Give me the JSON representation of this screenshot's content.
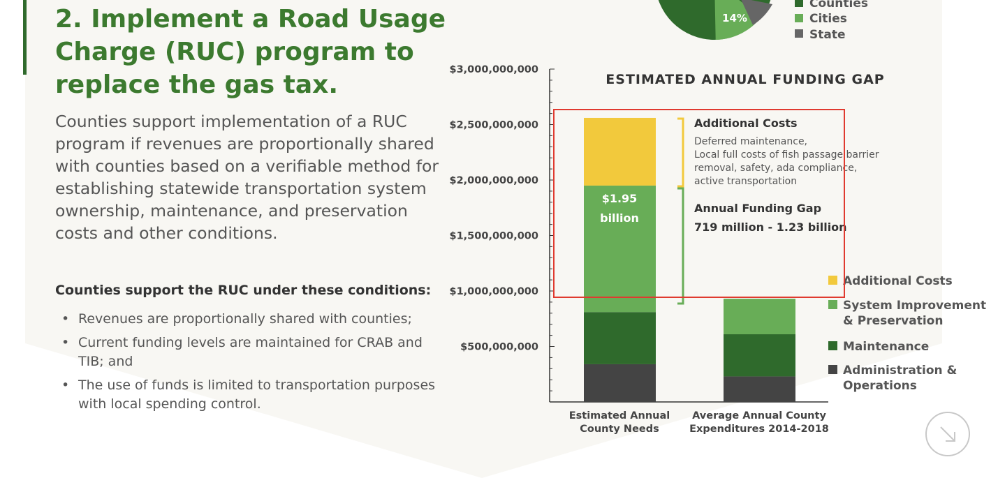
{
  "heading": "2. Implement a Road Usage Charge (RUC) program to replace the gas tax.",
  "intro": "Counties support implementation of a RUC program if revenues are proportionally shared with counties based on a verifiable method for establishing statewide transportation system ownership, maintenance, and preservation costs and other conditions.",
  "conditions_heading": "Counties support the RUC under these conditions:",
  "conditions": [
    "Revenues are proportionally shared with counties;",
    "Current funding levels are maintained for CRAB and TIB; and",
    "The use of funds is limited to transportation purposes with local spending control."
  ],
  "bullet": "•",
  "colors": {
    "heading": "#3c7a2f",
    "panel": "#f8f7f3",
    "yellow": "#f2c93c",
    "light_green": "#68ad57",
    "dark_green": "#2f6a2c",
    "charcoal": "#444444",
    "gray": "#666666",
    "highlight": "#e03a2f"
  },
  "pie_legend": [
    "Counties",
    "Cities",
    "State"
  ],
  "pie_cities_pct": 14,
  "pie_label": "14%",
  "chart_data": {
    "type": "bar",
    "stacked": true,
    "title": "ESTIMATED ANNUAL FUNDING GAP",
    "categories": [
      "Estimated Annual County Needs",
      "Average Annual County Expenditures 2014-2018"
    ],
    "category_labels": [
      [
        "Estimated Annual",
        "County Needs"
      ],
      [
        "Average Annual County",
        "Expenditures 2014-2018"
      ]
    ],
    "series": [
      {
        "name": "Administration & Operations",
        "legend": [
          "Administration &",
          "Operations"
        ],
        "color": "#444444",
        "values": [
          340000000,
          230000000
        ]
      },
      {
        "name": "Maintenance",
        "legend": [
          "Maintenance"
        ],
        "color": "#2f6a2c",
        "values": [
          470000000,
          380000000
        ]
      },
      {
        "name": "System Improvement & Preservation",
        "legend": [
          "System Improvement",
          "& Preservation"
        ],
        "color": "#68ad57",
        "values": [
          1140000000,
          320000000
        ]
      },
      {
        "name": "Additional Costs",
        "legend": [
          "Additional Costs"
        ],
        "color": "#f2c93c",
        "values": [
          610000000,
          0
        ]
      }
    ],
    "y_ticks": [
      500000000,
      1000000000,
      1500000000,
      2000000000,
      2500000000,
      3000000000
    ],
    "y_tick_labels": [
      "$500,000,000",
      "$1,000,000,000",
      "$1,500,000,000",
      "$2,000,000,000",
      "$2,500,000,000",
      "$3,000,000,000"
    ],
    "ylim": [
      0,
      3000000000
    ],
    "bar_label": [
      "$1.95",
      "billion"
    ],
    "annotations": {
      "additional_title": "Additional Costs",
      "additional_lines": [
        "Deferred maintenance,",
        "Local full costs of fish passage barrier",
        "removal, safety, ada compliance,",
        "active transportation"
      ],
      "gap_title": "Annual Funding Gap",
      "gap_range": "719 million - 1.23 billion"
    }
  }
}
